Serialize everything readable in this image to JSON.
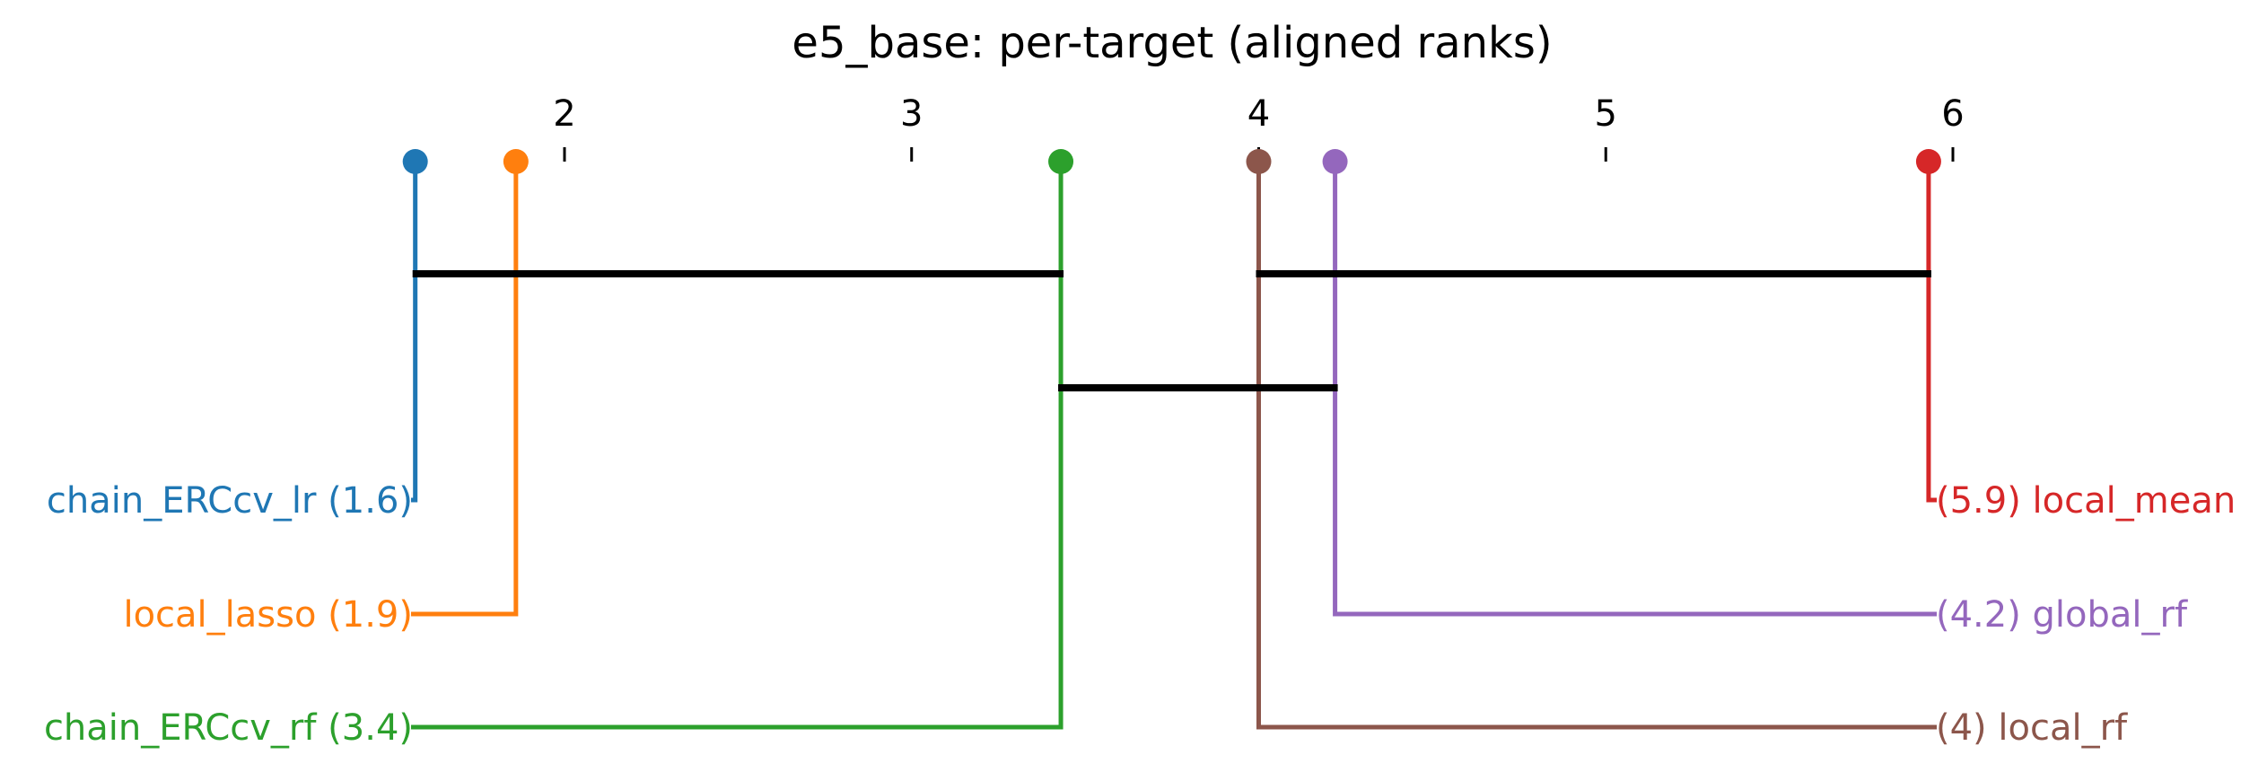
{
  "chart_data": {
    "type": "critical-difference-diagram",
    "title": "e5_base: per-target (aligned ranks)",
    "axis": {
      "range": [
        1.6,
        5.95
      ],
      "ticks": [
        2,
        3,
        4,
        5,
        6
      ],
      "tick_labels": [
        "2",
        "3",
        "4",
        "5",
        "6"
      ]
    },
    "methods": [
      {
        "name": "chain_ERCcv_lr",
        "rank": 1.57,
        "rank_label": "1.6",
        "side": "left",
        "color": "#1f77b4",
        "label": "chain_ERCcv_lr (1.6)"
      },
      {
        "name": "local_lasso",
        "rank": 1.86,
        "rank_label": "1.9",
        "side": "left",
        "color": "#ff7f0e",
        "label": "local_lasso (1.9)"
      },
      {
        "name": "chain_ERCcv_rf",
        "rank": 3.43,
        "rank_label": "3.4",
        "side": "left",
        "color": "#2ca02c",
        "label": "chain_ERCcv_rf (3.4)"
      },
      {
        "name": "local_rf",
        "rank": 4.0,
        "rank_label": "4",
        "side": "right",
        "color": "#8c564b",
        "label": "(4) local_rf"
      },
      {
        "name": "global_rf",
        "rank": 4.22,
        "rank_label": "4.2",
        "side": "right",
        "color": "#9467bd",
        "label": "(4.2) global_rf"
      },
      {
        "name": "local_mean",
        "rank": 5.93,
        "rank_label": "5.9",
        "side": "right",
        "color": "#d62728",
        "label": "(5.9) local_mean"
      }
    ],
    "cliques": [
      {
        "from": 1.57,
        "to": 3.43
      },
      {
        "from": 4.0,
        "to": 5.93
      },
      {
        "from": 3.43,
        "to": 4.22
      }
    ]
  }
}
